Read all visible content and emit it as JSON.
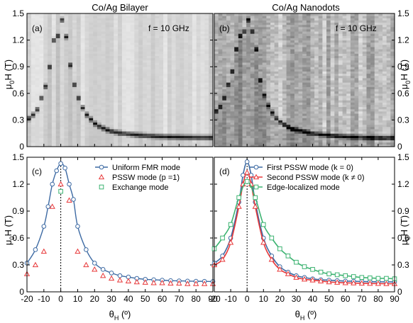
{
  "chart_data": [
    {
      "id": "a",
      "type": "heatmap",
      "panel_label": "(a)",
      "title": "Co/Ag Bilayer",
      "annotation": "f = 10 GHz",
      "ylabel_main": "μ",
      "ylabel_sub": "0",
      "ylabel_rest": "H (T)",
      "ylim": [
        0,
        1.5
      ],
      "yticks": [
        "0",
        "0.3",
        "0.6",
        "0.9",
        "1.2",
        "1.5"
      ],
      "x_range_deg": [
        -20,
        90
      ],
      "columns_theta": [
        -20,
        -17.5,
        -15,
        -12.5,
        -10,
        -7.5,
        -5,
        -2.5,
        0,
        2.5,
        5,
        7.5,
        10,
        12.5,
        15,
        17.5,
        20,
        22.5,
        25,
        27.5,
        30,
        32.5,
        35,
        37.5,
        40,
        42.5,
        45,
        47.5,
        50,
        52.5,
        55,
        57.5,
        60,
        62.5,
        65,
        67.5,
        70,
        72.5,
        75,
        77.5,
        80,
        82.5,
        85,
        87.5,
        90
      ],
      "resonance_field": [
        0.32,
        0.36,
        0.42,
        0.55,
        0.68,
        0.9,
        1.2,
        1.25,
        1.43,
        1.24,
        0.92,
        0.7,
        0.55,
        0.44,
        0.36,
        0.31,
        0.26,
        0.23,
        0.21,
        0.19,
        0.175,
        0.165,
        0.155,
        0.15,
        0.145,
        0.14,
        0.135,
        0.13,
        0.127,
        0.124,
        0.121,
        0.118,
        0.116,
        0.114,
        0.112,
        0.111,
        0.11,
        0.109,
        0.108,
        0.107,
        0.106,
        0.105,
        0.105,
        0.104,
        0.104
      ]
    },
    {
      "id": "b",
      "type": "heatmap",
      "panel_label": "(b)",
      "title": "Co/Ag Nanodots",
      "annotation": "f = 10 GHz",
      "ylabel_main": "μ",
      "ylabel_sub": "0",
      "ylabel_rest": "H (T)",
      "ylim": [
        0,
        1.5
      ],
      "yticks": [
        "0",
        "0.3",
        "0.6",
        "0.9",
        "1.2",
        "1.5"
      ],
      "x_range_deg": [
        -20,
        90
      ],
      "columns_theta": [
        -20,
        -17.5,
        -15,
        -12.5,
        -10,
        -7.5,
        -5,
        -2.5,
        0,
        2.5,
        5,
        7.5,
        10,
        12.5,
        15,
        17.5,
        20,
        22.5,
        25,
        27.5,
        30,
        32.5,
        35,
        37.5,
        40,
        42.5,
        45,
        47.5,
        50,
        52.5,
        55,
        57.5,
        60,
        62.5,
        65,
        67.5,
        70,
        72.5,
        75,
        77.5,
        80,
        82.5,
        85,
        87.5,
        90
      ],
      "resonance_field": [
        0.4,
        0.45,
        0.55,
        0.7,
        0.85,
        1.1,
        1.25,
        1.3,
        1.43,
        1.3,
        1.1,
        0.75,
        0.58,
        0.46,
        0.38,
        0.32,
        0.28,
        0.25,
        0.22,
        0.2,
        0.19,
        0.18,
        0.17,
        0.16,
        0.15,
        0.145,
        0.14,
        0.135,
        0.13,
        0.125,
        0.12,
        0.118,
        0.115,
        0.112,
        0.11,
        0.108,
        0.106,
        0.105,
        0.104,
        0.103,
        0.102,
        0.101,
        0.1,
        0.1,
        0.1
      ]
    },
    {
      "id": "c",
      "type": "line",
      "panel_label": "(c)",
      "xlabel_main": "θ",
      "xlabel_sub": "H",
      "xlabel_rest": " (º)",
      "ylabel_main": "μ",
      "ylabel_sub": "0",
      "ylabel_rest": "H (T)",
      "xlim": [
        -20,
        90
      ],
      "ylim": [
        0,
        1.5
      ],
      "xticks": [
        "-20",
        "-10",
        "0",
        "10",
        "20",
        "30",
        "40",
        "50",
        "60",
        "70",
        "80",
        "90"
      ],
      "yticks": [
        "0",
        "0.3",
        "0.6",
        "0.9",
        "1.2",
        "1.5"
      ],
      "series": [
        {
          "name": "Uniform FMR mode",
          "color": "#3d6aa3",
          "marker": "circle",
          "x": [
            -20,
            -15,
            -10,
            -7.5,
            -5,
            -2.5,
            0,
            2.5,
            5,
            7.5,
            10,
            15,
            20,
            25,
            30,
            35,
            40,
            45,
            50,
            55,
            60,
            65,
            70,
            75,
            80,
            85,
            90
          ],
          "y": [
            0.32,
            0.47,
            0.73,
            0.95,
            1.2,
            1.35,
            1.43,
            1.38,
            1.2,
            1.03,
            0.73,
            0.47,
            0.32,
            0.25,
            0.21,
            0.18,
            0.165,
            0.15,
            0.14,
            0.135,
            0.13,
            0.125,
            0.122,
            0.12,
            0.118,
            0.117,
            0.115
          ]
        },
        {
          "name": "PSSW mode (p =1)",
          "color": "#e8393a",
          "marker": "triangle",
          "x": [
            -20,
            -15,
            -10,
            -5,
            0,
            5,
            10,
            15,
            20,
            25,
            30,
            35,
            40,
            45,
            50,
            55,
            60,
            65,
            70,
            75,
            80,
            85,
            90
          ],
          "y": [
            0.2,
            0.3,
            0.45,
            0.95,
            1.2,
            1.02,
            0.45,
            0.3,
            0.25,
            0.18,
            0.15,
            0.13,
            0.12,
            0.11,
            0.105,
            0.1,
            0.1,
            0.095,
            0.095,
            0.09,
            0.09,
            0.09,
            0.09
          ]
        },
        {
          "name": "Exchange mode",
          "color": "#3cb371",
          "marker": "square",
          "x": [
            0
          ],
          "y": [
            1.12
          ]
        }
      ],
      "legend_position": "top-right"
    },
    {
      "id": "d",
      "type": "line",
      "panel_label": "(d)",
      "xlabel_main": "θ",
      "xlabel_sub": "H",
      "xlabel_rest": " (º)",
      "ylabel_main": "μ",
      "ylabel_sub": "0",
      "ylabel_rest": "H (T)",
      "xlim": [
        -20,
        90
      ],
      "ylim": [
        0,
        1.5
      ],
      "xticks": [
        "-20",
        "-10",
        "0",
        "10",
        "20",
        "30",
        "40",
        "50",
        "60",
        "70",
        "80",
        "90"
      ],
      "yticks": [
        "0",
        "0.3",
        "0.6",
        "0.9",
        "1.2",
        "1.5"
      ],
      "series": [
        {
          "name": "First PSSW mode (k = 0)",
          "color": "#3d6aa3",
          "marker": "circle",
          "x": [
            -20,
            -15,
            -10,
            -5,
            -2.5,
            0,
            2.5,
            5,
            10,
            15,
            20,
            25,
            30,
            35,
            40,
            45,
            50,
            55,
            60,
            65,
            70,
            75,
            80,
            85,
            90
          ],
          "y": [
            0.32,
            0.4,
            0.6,
            1.0,
            1.3,
            1.45,
            1.3,
            1.0,
            0.6,
            0.4,
            0.28,
            0.22,
            0.18,
            0.16,
            0.145,
            0.135,
            0.13,
            0.125,
            0.12,
            0.118,
            0.115,
            0.113,
            0.112,
            0.111,
            0.11
          ]
        },
        {
          "name": "Second PSSW mode (k ≠ 0)",
          "color": "#e8393a",
          "marker": "triangle",
          "x": [
            -20,
            -15,
            -10,
            -5,
            -2.5,
            0,
            2.5,
            5,
            10,
            15,
            20,
            25,
            30,
            35,
            40,
            45,
            50,
            55,
            60,
            65,
            70,
            75,
            80,
            85,
            90
          ],
          "y": [
            0.3,
            0.36,
            0.55,
            0.95,
            1.2,
            1.33,
            1.2,
            0.95,
            0.55,
            0.36,
            0.25,
            0.2,
            0.16,
            0.14,
            0.13,
            0.12,
            0.11,
            0.105,
            0.1,
            0.098,
            0.095,
            0.093,
            0.092,
            0.09,
            0.09
          ]
        },
        {
          "name": "Edge-localized mode",
          "color": "#3cb371",
          "marker": "square",
          "x": [
            -20,
            -15,
            -10,
            -5,
            0,
            5,
            10,
            15,
            20,
            25,
            30,
            35,
            40,
            45,
            50,
            55,
            60,
            65,
            70,
            75,
            80,
            85,
            90
          ],
          "y": [
            0.48,
            0.6,
            0.75,
            1.05,
            1.23,
            1.05,
            0.75,
            0.6,
            0.48,
            0.4,
            0.33,
            0.28,
            0.25,
            0.22,
            0.2,
            0.19,
            0.18,
            0.17,
            0.16,
            0.155,
            0.15,
            0.15,
            0.145
          ]
        }
      ],
      "legend_position": "top-right"
    }
  ]
}
